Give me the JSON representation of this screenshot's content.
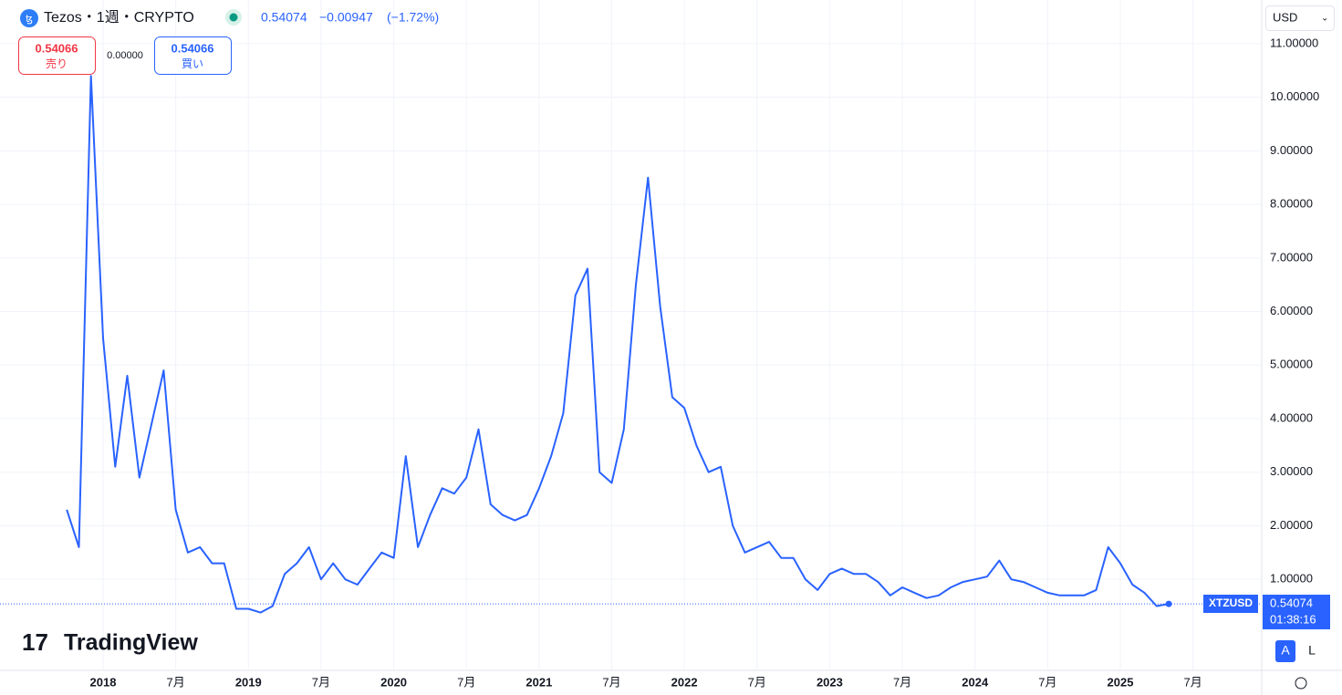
{
  "header": {
    "symbol": "Tezos・1週・CRYPTO",
    "price": "0.54074",
    "change": "−0.00947",
    "change_pct": "(−1.72%)",
    "sell_price": "0.54066",
    "sell_label": "売り",
    "spread": "0.00000",
    "buy_price": "0.54066",
    "buy_label": "買い",
    "currency": "USD"
  },
  "price_tag": {
    "ticker": "XTZUSD",
    "price": "0.54074",
    "countdown": "01:38:16"
  },
  "branding": "TradingView",
  "scale_buttons": [
    "A",
    "L"
  ],
  "chart_data": {
    "type": "line",
    "x": [
      "2017-10",
      "2017-11",
      "2017-12",
      "2018-01",
      "2018-02",
      "2018-03",
      "2018-04",
      "2018-05",
      "2018-06",
      "2018-07",
      "2018-08",
      "2018-09",
      "2018-10",
      "2018-11",
      "2018-12",
      "2019-01",
      "2019-02",
      "2019-03",
      "2019-04",
      "2019-05",
      "2019-06",
      "2019-07",
      "2019-08",
      "2019-09",
      "2019-10",
      "2019-11",
      "2019-12",
      "2020-01",
      "2020-02",
      "2020-03",
      "2020-04",
      "2020-05",
      "2020-06",
      "2020-07",
      "2020-08",
      "2020-09",
      "2020-10",
      "2020-11",
      "2020-12",
      "2021-01",
      "2021-02",
      "2021-03",
      "2021-04",
      "2021-05",
      "2021-06",
      "2021-07",
      "2021-08",
      "2021-09",
      "2021-10",
      "2021-11",
      "2021-12",
      "2022-01",
      "2022-02",
      "2022-03",
      "2022-04",
      "2022-05",
      "2022-06",
      "2022-07",
      "2022-08",
      "2022-09",
      "2022-10",
      "2022-11",
      "2022-12",
      "2023-01",
      "2023-02",
      "2023-03",
      "2023-04",
      "2023-05",
      "2023-06",
      "2023-07",
      "2023-08",
      "2023-09",
      "2023-10",
      "2023-11",
      "2023-12",
      "2024-01",
      "2024-02",
      "2024-03",
      "2024-04",
      "2024-05",
      "2024-06",
      "2024-07",
      "2024-08",
      "2024-09",
      "2024-10",
      "2024-11",
      "2024-12",
      "2025-01",
      "2025-02",
      "2025-03",
      "2025-04",
      "2025-05"
    ],
    "series": [
      {
        "name": "XTZUSD",
        "color": "#2962ff",
        "values": [
          2.3,
          1.6,
          10.4,
          5.5,
          3.1,
          4.8,
          2.9,
          3.9,
          4.9,
          2.3,
          1.5,
          1.6,
          1.3,
          1.3,
          0.45,
          0.45,
          0.38,
          0.5,
          1.1,
          1.3,
          1.6,
          1.0,
          1.3,
          1.0,
          0.9,
          1.2,
          1.5,
          1.4,
          3.3,
          1.6,
          2.2,
          2.7,
          2.6,
          2.9,
          3.8,
          2.4,
          2.2,
          2.1,
          2.2,
          2.7,
          3.3,
          4.1,
          6.3,
          6.8,
          3.0,
          2.8,
          3.8,
          6.5,
          8.5,
          6.1,
          4.4,
          4.2,
          3.5,
          3.0,
          3.1,
          2.0,
          1.5,
          1.6,
          1.7,
          1.4,
          1.4,
          1.0,
          0.8,
          1.1,
          1.2,
          1.1,
          1.1,
          0.95,
          0.7,
          0.85,
          0.75,
          0.65,
          0.7,
          0.85,
          0.95,
          1.0,
          1.05,
          1.35,
          1.0,
          0.95,
          0.85,
          0.75,
          0.7,
          0.7,
          0.7,
          0.8,
          1.6,
          1.3,
          0.9,
          0.75,
          0.5,
          0.54074
        ]
      }
    ],
    "ylim": [
      -0.7,
      11.68
    ],
    "yticks": [
      {
        "value": 1,
        "label": "1.00000"
      },
      {
        "value": 2,
        "label": "2.00000"
      },
      {
        "value": 3,
        "label": "3.00000"
      },
      {
        "value": 4,
        "label": "4.00000"
      },
      {
        "value": 5,
        "label": "5.00000"
      },
      {
        "value": 6,
        "label": "6.00000"
      },
      {
        "value": 7,
        "label": "7.00000"
      },
      {
        "value": 8,
        "label": "8.00000"
      },
      {
        "value": 9,
        "label": "9.00000"
      },
      {
        "value": 10,
        "label": "10.00000"
      },
      {
        "value": 11,
        "label": "11.00000"
      }
    ],
    "xticks": [
      {
        "value": "2018-01",
        "label": "2018"
      },
      {
        "value": "2018-07",
        "label": "7月"
      },
      {
        "value": "2019-01",
        "label": "2019"
      },
      {
        "value": "2019-07",
        "label": "7月"
      },
      {
        "value": "2020-01",
        "label": "2020"
      },
      {
        "value": "2020-07",
        "label": "7月"
      },
      {
        "value": "2021-01",
        "label": "2021"
      },
      {
        "value": "2021-07",
        "label": "7月"
      },
      {
        "value": "2022-01",
        "label": "2022"
      },
      {
        "value": "2022-07",
        "label": "7月"
      },
      {
        "value": "2023-01",
        "label": "2023"
      },
      {
        "value": "2023-07",
        "label": "7月"
      },
      {
        "value": "2024-01",
        "label": "2024"
      },
      {
        "value": "2024-07",
        "label": "7月"
      },
      {
        "value": "2025-01",
        "label": "2025"
      },
      {
        "value": "2025-07",
        "label": "7月"
      }
    ],
    "grid": true
  }
}
